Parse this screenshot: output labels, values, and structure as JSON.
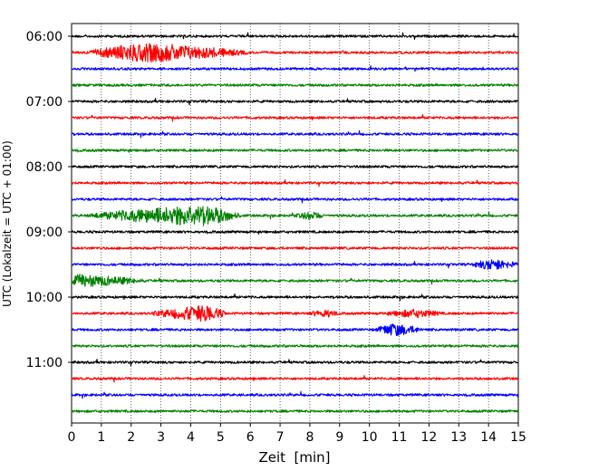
{
  "chart_data": {
    "type": "line",
    "chart_kind": "helicorder seismogram",
    "title": "",
    "xlabel": "Zeit  [min]",
    "ylabel": "UTC (Lokalzeit = UTC + 01:00)",
    "xlim": [
      0,
      15
    ],
    "x_ticks": [
      "0",
      "1",
      "2",
      "3",
      "4",
      "5",
      "6",
      "7",
      "8",
      "9",
      "10",
      "11",
      "12",
      "13",
      "14",
      "15"
    ],
    "y_tick_labels": [
      "06:00",
      "07:00",
      "08:00",
      "09:00",
      "10:00",
      "11:00"
    ],
    "grid": "vertical dotted gridlines at each minute",
    "legend": "none",
    "line_start_times": [
      "06:00",
      "06:15",
      "06:30",
      "06:45",
      "07:00",
      "07:15",
      "07:30",
      "07:45",
      "08:00",
      "08:15",
      "08:30",
      "08:45",
      "09:00",
      "09:15",
      "09:30",
      "09:45",
      "10:00",
      "10:15",
      "10:30",
      "10:45",
      "11:00",
      "11:15",
      "11:30",
      "11:45"
    ],
    "trace_colors": [
      "#000000",
      "#ff0000",
      "#0000ff",
      "#008000"
    ],
    "events": [
      {
        "line": 1,
        "start_min": 0.5,
        "peak_min": 2.5,
        "end_min": 6.0,
        "relative_amplitude": 0.55
      },
      {
        "line": 11,
        "start_min": 0.5,
        "peak_min": 4.3,
        "end_min": 5.7,
        "relative_amplitude": 0.6
      },
      {
        "line": 11,
        "start_min": 7.5,
        "peak_min": 8.0,
        "end_min": 8.5,
        "relative_amplitude": 0.2
      },
      {
        "line": 14,
        "start_min": 13.4,
        "peak_min": 14.2,
        "end_min": 15.0,
        "relative_amplitude": 0.3
      },
      {
        "line": 15,
        "start_min": 0.0,
        "peak_min": 0.2,
        "end_min": 2.5,
        "relative_amplitude": 0.35
      },
      {
        "line": 17,
        "start_min": 2.6,
        "peak_min": 4.5,
        "end_min": 5.2,
        "relative_amplitude": 0.45
      },
      {
        "line": 17,
        "start_min": 8.0,
        "peak_min": 8.5,
        "end_min": 9.0,
        "relative_amplitude": 0.2
      },
      {
        "line": 17,
        "start_min": 10.5,
        "peak_min": 11.5,
        "end_min": 12.5,
        "relative_amplitude": 0.2
      },
      {
        "line": 18,
        "start_min": 10.2,
        "peak_min": 10.8,
        "end_min": 11.8,
        "relative_amplitude": 0.35
      }
    ]
  }
}
